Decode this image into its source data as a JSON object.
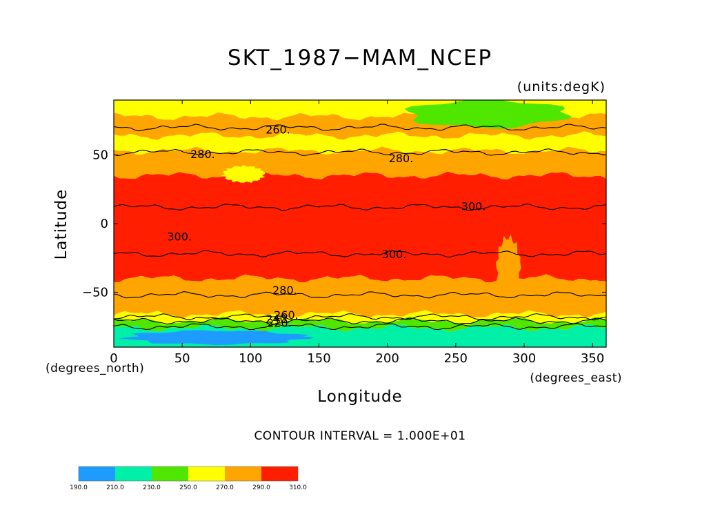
{
  "chart_data": {
    "type": "heatmap",
    "title": "SKT_1987−MAM_NCEP",
    "units_label": "(units:degK)",
    "xlabel": "Longitude",
    "ylabel": "Latitude",
    "x_units_label": "(degrees_east)",
    "y_units_label": "(degrees_north)",
    "contour_interval_text": "CONTOUR INTERVAL = 1.000E+01",
    "xlim": [
      0,
      360
    ],
    "ylim": [
      -90,
      90
    ],
    "x_ticks": [
      0,
      50,
      100,
      150,
      200,
      250,
      300,
      350
    ],
    "y_ticks": [
      {
        "value": 50,
        "label": "50"
      },
      {
        "value": 0,
        "label": "0"
      },
      {
        "value": -50,
        "label": "−50"
      }
    ],
    "colorbar": {
      "levels": [
        "190.0",
        "210.0",
        "230.0",
        "250.0",
        "270.0",
        "290.0",
        "310.0"
      ],
      "colors": [
        "#1e9bff",
        "#00f0a8",
        "#4fe600",
        "#ffff00",
        "#ffa500",
        "#ff1e00"
      ]
    },
    "zones": [
      {
        "lat_top": 90,
        "lat_bottom": 78,
        "level_index": 3
      },
      {
        "lat_top": 78,
        "lat_bottom": 64,
        "level_index": 4
      },
      {
        "lat_top": 64,
        "lat_bottom": 53,
        "level_index": 3
      },
      {
        "lat_top": 53,
        "lat_bottom": 35,
        "level_index": 4
      },
      {
        "lat_top": 35,
        "lat_bottom": -40,
        "level_index": 5
      },
      {
        "lat_top": -40,
        "lat_bottom": -66,
        "level_index": 4
      },
      {
        "lat_top": -66,
        "lat_bottom": -71,
        "level_index": 3
      },
      {
        "lat_top": -71,
        "lat_bottom": -76,
        "level_index": 2
      },
      {
        "lat_top": -76,
        "lat_bottom": -90,
        "level_index": 1
      }
    ],
    "patches": [
      {
        "lon": [
          215,
          330
        ],
        "lat": [
          90,
          70
        ],
        "level_index": 2
      },
      {
        "lon": [
          10,
          140
        ],
        "lat": [
          -78,
          -88
        ],
        "level_index": 0
      },
      {
        "lon": [
          280,
          297
        ],
        "lat": [
          -10,
          -55
        ],
        "level_index": 4
      },
      {
        "lon": [
          80,
          110
        ],
        "lat": [
          42,
          30
        ],
        "level_index": 3
      }
    ],
    "contour_lines": [
      {
        "value": 260,
        "label": "260",
        "lat": 70
      },
      {
        "value": 280,
        "label": "280",
        "lat": 52
      },
      {
        "value": 300,
        "label": "300",
        "lat": 12
      },
      {
        "value": 300,
        "label": "300",
        "lat": -22
      },
      {
        "value": 280,
        "label": "280",
        "lat": -52
      },
      {
        "value": 260,
        "label": "260",
        "lat": -68
      },
      {
        "value": 240,
        "label": "240",
        "lat": -71
      },
      {
        "value": 220,
        "label": "220",
        "lat": -75
      }
    ],
    "contour_labels": [
      {
        "label": "260",
        "lon": 120,
        "lat": 68
      },
      {
        "label": "280",
        "lon": 65,
        "lat": 50
      },
      {
        "label": "280",
        "lon": 210,
        "lat": 47
      },
      {
        "label": "300",
        "lon": 48,
        "lat": -10
      },
      {
        "label": "300",
        "lon": 263,
        "lat": 12
      },
      {
        "label": "300",
        "lon": 205,
        "lat": -23
      },
      {
        "label": "280",
        "lon": 125,
        "lat": -49
      },
      {
        "label": "260",
        "lon": 126,
        "lat": -67
      },
      {
        "label": "240",
        "lon": 120,
        "lat": -70
      },
      {
        "label": "220",
        "lon": 121,
        "lat": -73
      }
    ]
  }
}
